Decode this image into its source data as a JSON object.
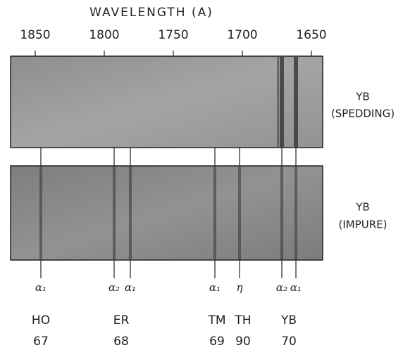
{
  "axis": {
    "title": "WAVELENGTH (A)",
    "ticks": [
      1850,
      1800,
      1750,
      1700,
      1650
    ]
  },
  "plates": [
    {
      "label": [
        "YB",
        "(SPEDDING)"
      ]
    },
    {
      "label": [
        "YB",
        "(IMPURE)"
      ]
    }
  ],
  "lines": [
    {
      "label": "α₁"
    },
    {
      "label": "α₂"
    },
    {
      "label": "α₁"
    },
    {
      "label": "α₁"
    },
    {
      "label": "η"
    },
    {
      "label": "α₂"
    },
    {
      "label": "α₁"
    }
  ],
  "elements": [
    {
      "symbol": "HO",
      "z": 67
    },
    {
      "symbol": "ER",
      "z": 68
    },
    {
      "symbol": "TM",
      "z": 69
    },
    {
      "symbol": "TH",
      "z": 90
    },
    {
      "symbol": "YB",
      "z": 70
    }
  ]
}
